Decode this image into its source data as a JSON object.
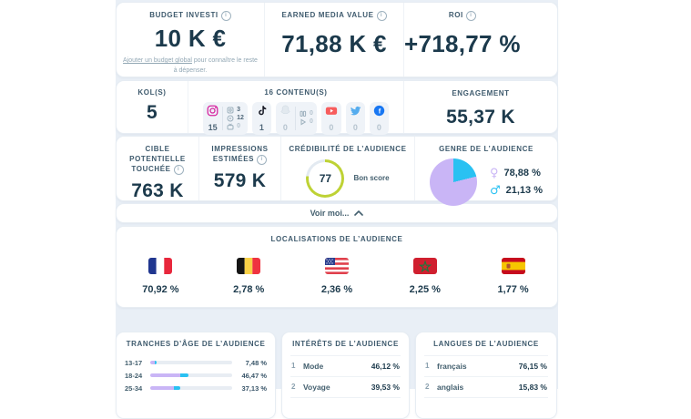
{
  "colors": {
    "lime": "#bed234",
    "ring_rest": "#e3eaf1",
    "purple": "#c9b5f6",
    "cyan": "#29c1f2"
  },
  "kpi_row": {
    "budget": {
      "label": "BUDGET INVESTI",
      "value": "10 K €",
      "link_text": "Ajouter un budget global",
      "link_rest": " pour connaître le reste à dépenser."
    },
    "emv": {
      "label": "EARNED MEDIA VALUE",
      "value": "71,88 K €"
    },
    "roi": {
      "label": "ROI",
      "value": "+718,77 %"
    }
  },
  "kol_row": {
    "kols_label": "KOL(S)",
    "kols_value": "5",
    "content_label": "16 CONTENU(S)",
    "platforms": [
      {
        "name": "instagram",
        "count": "15",
        "substats": [
          {
            "icon": "posts-icon",
            "value": "3"
          },
          {
            "icon": "reels-icon",
            "value": "12"
          },
          {
            "icon": "igtv-icon",
            "value": "0"
          }
        ]
      },
      {
        "name": "tiktok",
        "count": "1"
      },
      {
        "name": "snapchat",
        "count": "0",
        "substats": [
          {
            "icon": "stories-icon",
            "value": "0"
          },
          {
            "icon": "spotlight-icon",
            "value": "0"
          }
        ]
      },
      {
        "name": "youtube",
        "count": "0"
      },
      {
        "name": "twitter",
        "count": "0"
      },
      {
        "name": "facebook",
        "count": "0"
      }
    ],
    "engagement_label": "ENGAGEMENT",
    "engagement_value": "55,37 K"
  },
  "audience_row": {
    "reach": {
      "label_line1": "CIBLE POTENTIELLE",
      "label_line2": "TOUCHÉE",
      "value": "763 K"
    },
    "impressions": {
      "label_line1": "IMPRESSIONS",
      "label_line2": "ESTIMÉES",
      "value": "579 K"
    },
    "credibility": {
      "label": "CRÉDIBILITÉ DE L’AUDIENCE",
      "score": "77",
      "score_value": 77,
      "score_text": "Bon score"
    },
    "gender": {
      "label": "GENRE DE L’AUDIENCE",
      "female_pct": "78,88 %",
      "male_pct": "21,13 %",
      "female_value": 78.88,
      "male_value": 21.13
    }
  },
  "see_more": {
    "label": "Voir moi..."
  },
  "locations": {
    "label": "LOCALISATIONS DE L’AUDIENCE",
    "items": [
      {
        "country": "france",
        "pct": "70,92 %"
      },
      {
        "country": "belgium",
        "pct": "2,78 %"
      },
      {
        "country": "usa",
        "pct": "2,36 %"
      },
      {
        "country": "morocco",
        "pct": "2,25 %"
      },
      {
        "country": "spain",
        "pct": "1,77 %"
      }
    ]
  },
  "age_card": {
    "label": "TRANCHES D’ÂGE DE L’AUDIENCE",
    "rows": [
      {
        "range": "13-17",
        "pct": "7,48 %",
        "female_w": 5.9,
        "male_w": 1.6
      },
      {
        "range": "18-24",
        "pct": "46,47 %",
        "female_w": 36.7,
        "male_w": 9.8
      },
      {
        "range": "25-34",
        "pct": "37,13 %",
        "female_w": 29.3,
        "male_w": 7.8
      }
    ]
  },
  "interests": {
    "label": "INTÉRÊTS DE L’AUDIENCE",
    "rows": [
      {
        "rank": "1",
        "name": "Mode",
        "pct": "46,12 %"
      },
      {
        "rank": "2",
        "name": "Voyage",
        "pct": "39,53 %"
      }
    ]
  },
  "languages": {
    "label": "LANGUES DE L’AUDIENCE",
    "rows": [
      {
        "rank": "1",
        "name": "français",
        "pct": "76,15 %"
      },
      {
        "rank": "2",
        "name": "anglais",
        "pct": "15,83 %"
      }
    ]
  }
}
